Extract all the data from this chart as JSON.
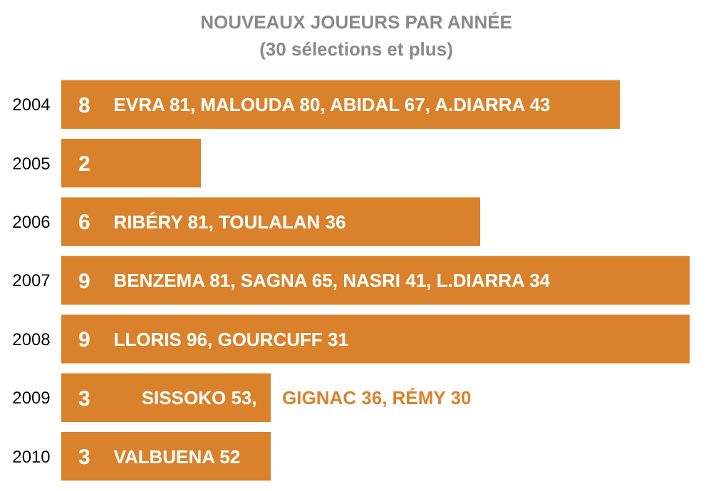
{
  "chart_data": {
    "type": "bar",
    "orientation": "horizontal",
    "title": "NOUVEAUX JOUEURS PAR ANNÉE",
    "subtitle": "(30 sélections et plus)",
    "categories": [
      "2004",
      "2005",
      "2006",
      "2007",
      "2008",
      "2009",
      "2010"
    ],
    "values": [
      8,
      2,
      6,
      9,
      9,
      3,
      3
    ],
    "color": "#d9822b",
    "data_labels": true,
    "annotations": [
      {
        "text": "EVRA 81, MALOUDA 80, ABIDAL 67, A.DIARRA 43",
        "x": 0.75,
        "y": "2004"
      },
      {
        "text": "RIBÉRY 81, TOULALAN 36",
        "x": 0.75,
        "y": "2006"
      },
      {
        "text": "BENZEMA 81, SAGNA 65, NASRI 41, L.DIARRA 34",
        "x": 0.75,
        "y": "2007"
      },
      {
        "text": "LLORIS 96, GOURCUFF 31",
        "x": 0.75,
        "y": "2008"
      },
      {
        "text": "SISSOKO 53,",
        "x": 1.15,
        "y": "2009"
      },
      {
        "text": "GIGNAC 36, RÉMY 30",
        "x": 3,
        "y": "2009"
      },
      {
        "text": "VALBUENA 52",
        "x": 0.75,
        "y": "2010"
      }
    ]
  }
}
